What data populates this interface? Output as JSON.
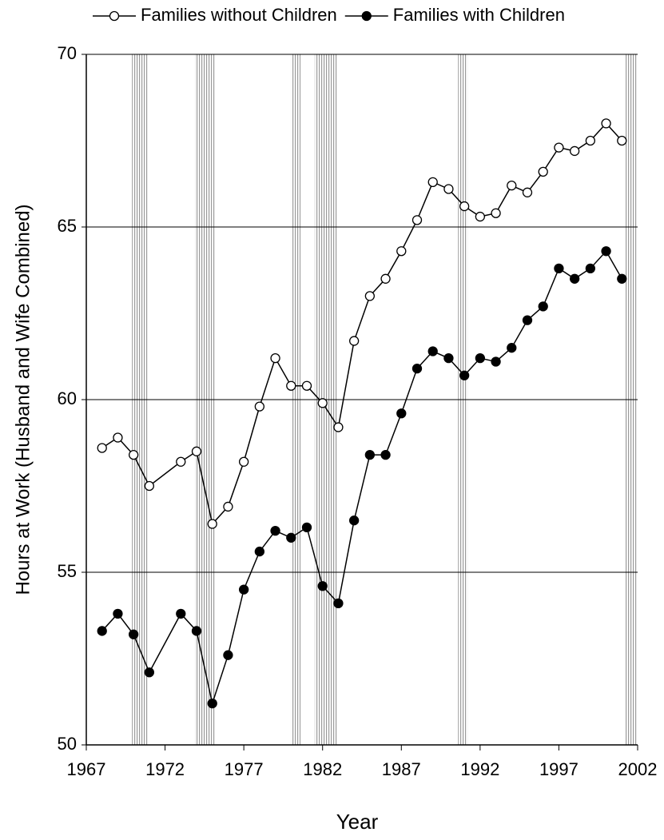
{
  "chart_data": {
    "type": "line",
    "xlabel": "Year",
    "ylabel": "Hours at Work (Husband and Wife Combined)",
    "x": [
      1968,
      1969,
      1970,
      1971,
      1973,
      1974,
      1975,
      1976,
      1977,
      1978,
      1979,
      1980,
      1981,
      1982,
      1983,
      1984,
      1985,
      1986,
      1987,
      1988,
      1989,
      1990,
      1991,
      1992,
      1993,
      1994,
      1995,
      1996,
      1997,
      1998,
      1999,
      2000,
      2001
    ],
    "series": [
      {
        "name": "Families without Children",
        "color": "#000000",
        "marker_fill": "#ffffff",
        "values": [
          58.6,
          58.9,
          58.4,
          57.5,
          58.2,
          58.5,
          56.4,
          56.9,
          58.2,
          59.8,
          61.2,
          60.4,
          60.4,
          59.9,
          59.2,
          61.7,
          63.0,
          63.5,
          64.3,
          65.2,
          66.3,
          66.1,
          65.6,
          65.3,
          65.4,
          66.2,
          66.0,
          66.6,
          67.3,
          67.2,
          67.5,
          68.0,
          67.5
        ]
      },
      {
        "name": "Families with Children",
        "color": "#000000",
        "marker_fill": "#000000",
        "values": [
          53.3,
          53.8,
          53.2,
          52.1,
          53.8,
          53.3,
          51.2,
          52.6,
          54.5,
          55.6,
          56.2,
          56.0,
          56.3,
          54.6,
          54.1,
          56.5,
          58.4,
          58.4,
          59.6,
          60.9,
          61.4,
          61.2,
          60.7,
          61.2,
          61.1,
          61.5,
          62.3,
          62.7,
          63.8,
          63.5,
          63.8,
          64.3,
          63.5
        ]
      }
    ],
    "recessions": [
      [
        1969.9,
        1970.9
      ],
      [
        1973.9,
        1975.2
      ],
      [
        1980.0,
        1980.6
      ],
      [
        1981.5,
        1982.9
      ],
      [
        1990.6,
        1991.2
      ],
      [
        2001.2,
        2002.0
      ]
    ],
    "recession_color": "#9a9a9a",
    "xlim": [
      1967,
      2002
    ],
    "xticks": [
      1967,
      1972,
      1977,
      1982,
      1987,
      1992,
      1997,
      2002
    ],
    "ylim": [
      50,
      70
    ],
    "yticks": [
      50,
      55,
      60,
      65,
      70
    ],
    "grid": true,
    "legend": "top"
  }
}
